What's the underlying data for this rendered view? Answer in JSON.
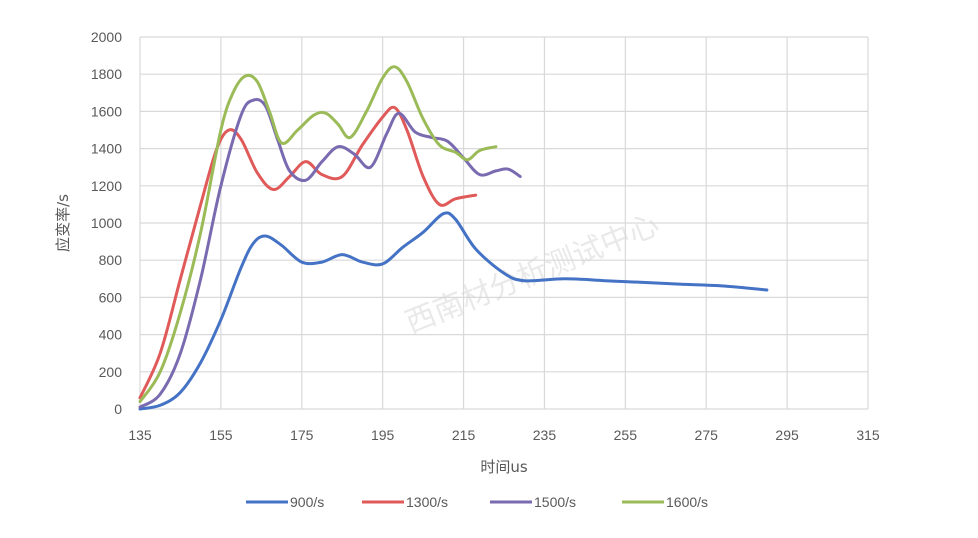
{
  "chart_data": {
    "type": "line",
    "title": "",
    "xlabel": "时间us",
    "ylabel": "应变率/s",
    "xlim": [
      135,
      315
    ],
    "ylim": [
      0,
      2000
    ],
    "x_ticks": [
      135,
      155,
      175,
      195,
      215,
      235,
      255,
      275,
      295,
      315
    ],
    "y_ticks": [
      0,
      200,
      400,
      600,
      800,
      1000,
      1200,
      1400,
      1600,
      1800,
      2000
    ],
    "grid": true,
    "legend_position": "bottom",
    "watermark": "西南材分析测试中心",
    "series": [
      {
        "name": "900/s",
        "color": "#4472c4",
        "x": [
          135,
          140,
          145,
          150,
          155,
          160,
          163,
          166,
          170,
          175,
          180,
          185,
          190,
          195,
          200,
          205,
          210,
          213,
          218,
          225,
          230,
          240,
          250,
          260,
          270,
          280,
          290
        ],
        "y": [
          0,
          20,
          90,
          250,
          480,
          760,
          890,
          930,
          880,
          790,
          790,
          830,
          790,
          780,
          870,
          950,
          1050,
          1020,
          860,
          730,
          690,
          700,
          690,
          680,
          670,
          660,
          640
        ]
      },
      {
        "name": "1300/s",
        "color": "#e05a5a",
        "x": [
          135,
          140,
          145,
          150,
          154,
          157,
          160,
          164,
          168,
          172,
          176,
          180,
          185,
          190,
          195,
          198,
          201,
          205,
          209,
          213,
          218
        ],
        "y": [
          60,
          300,
          700,
          1100,
          1400,
          1500,
          1450,
          1270,
          1180,
          1250,
          1330,
          1260,
          1250,
          1420,
          1570,
          1620,
          1500,
          1250,
          1100,
          1130,
          1150
        ]
      },
      {
        "name": "1500/s",
        "color": "#7a6ab0",
        "x": [
          135,
          140,
          145,
          150,
          155,
          160,
          163,
          166,
          169,
          172,
          176,
          180,
          184,
          188,
          192,
          196,
          199,
          203,
          207,
          211,
          215,
          219,
          223,
          226,
          229
        ],
        "y": [
          10,
          80,
          300,
          700,
          1200,
          1580,
          1660,
          1630,
          1450,
          1280,
          1230,
          1330,
          1410,
          1370,
          1300,
          1480,
          1590,
          1490,
          1460,
          1440,
          1350,
          1260,
          1280,
          1290,
          1250
        ]
      },
      {
        "name": "1600/s",
        "color": "#9bbb59",
        "x": [
          135,
          140,
          145,
          150,
          155,
          158,
          161,
          164,
          167,
          170,
          174,
          178,
          181,
          184,
          187,
          191,
          195,
          198,
          201,
          205,
          209,
          213,
          216,
          219,
          223
        ],
        "y": [
          40,
          200,
          520,
          950,
          1500,
          1700,
          1790,
          1760,
          1600,
          1430,
          1500,
          1580,
          1590,
          1530,
          1460,
          1600,
          1780,
          1840,
          1760,
          1560,
          1420,
          1380,
          1340,
          1390,
          1410
        ]
      }
    ]
  }
}
